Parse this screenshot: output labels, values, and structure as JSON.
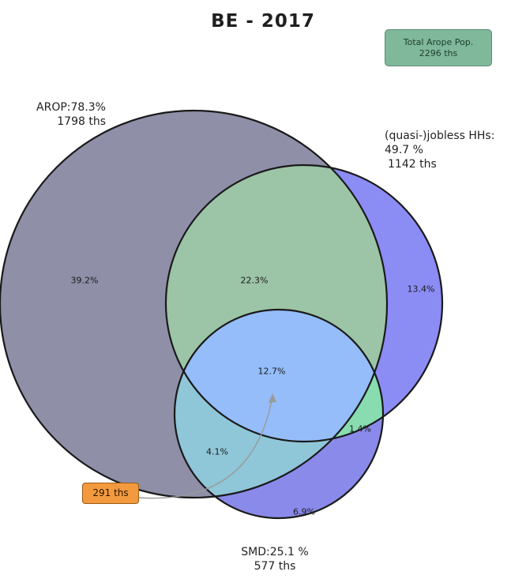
{
  "title": "BE - 2017",
  "total_box": {
    "line1": "Total Arope Pop.",
    "line2": "2296 ths"
  },
  "sets": {
    "arop": {
      "line1": "AROP:78.3%",
      "line2": "1798 ths",
      "color": "#8f8fa8"
    },
    "jobless": {
      "line1": "(quasi-)jobless HHs:",
      "line2": "49.7 %",
      "line3": "1142 ths",
      "color": "#8c8cf5"
    },
    "smd": {
      "line1": "SMD:25.1 %",
      "line2": "577 ths",
      "color": "#8a8aea"
    }
  },
  "regions": {
    "arop_only": "39.2%",
    "arop_jobless": "22.3%",
    "jobless_only": "13.4%",
    "all_three": "12.7%",
    "arop_smd": "4.1%",
    "jobless_smd": "1.4%",
    "smd_only": "6.9%"
  },
  "region_colors": {
    "arop_jobless": "#9cc4a6",
    "all_three": "#94bdfa",
    "arop_smd": "#8fc6d8",
    "jobless_smd": "#88dcb0"
  },
  "callout": {
    "label": "291 ths",
    "color": "#f39a3f"
  }
}
